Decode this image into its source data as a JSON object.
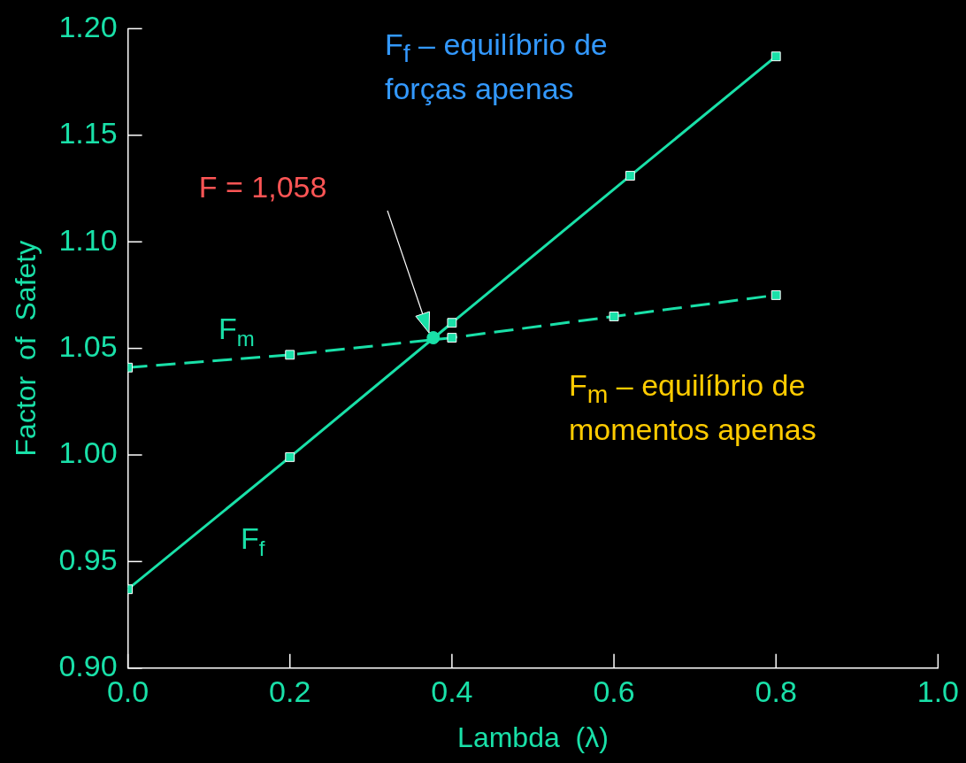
{
  "chart_data": {
    "type": "line",
    "xlabel": "Lambda  (λ)",
    "ylabel": "Factor  of  Safety",
    "series": [
      {
        "name": "F$_{f}$",
        "color": "#19e0a8",
        "x": [
          0,
          0.2,
          0.4,
          0.62,
          0.8
        ],
        "values": [
          0.937,
          0.999,
          1.062,
          1.131,
          1.187
        ],
        "line_style": "solid"
      },
      {
        "name": "F$_{m}$",
        "color": "#19e0a8",
        "x": [
          0,
          0.2,
          0.4,
          0.6,
          0.8
        ],
        "values": [
          1.041,
          1.047,
          1.055,
          1.065,
          1.075
        ],
        "line_style": "dashed"
      },
      {
        "type": "scatter",
        "color": "#19e0a8",
        "x": [
          0.377
        ],
        "values": [
          1.055
        ],
        "marker": "circle"
      }
    ],
    "marker": "square",
    "xlim": [
      0,
      1.0
    ],
    "ylim": [
      0.9,
      1.2
    ],
    "xticks": [
      {
        "value": 0,
        "label": "0.0"
      },
      {
        "value": 0.2,
        "label": "0.2"
      },
      {
        "value": 0.4,
        "label": "0.4"
      },
      {
        "value": 0.6,
        "label": "0.6"
      },
      {
        "value": 0.8,
        "label": "0.8"
      },
      {
        "value": 1.0,
        "label": "1.0"
      }
    ],
    "yticks": [
      {
        "value": 0.9,
        "label": "0.90"
      },
      {
        "value": 0.95,
        "label": "0.95"
      },
      {
        "value": 1.0,
        "label": "1.00"
      },
      {
        "value": 1.05,
        "label": "1.05"
      },
      {
        "value": 1.1,
        "label": "1.10"
      },
      {
        "value": 1.15,
        "label": "1.15"
      },
      {
        "value": 1.2,
        "label": "1.20"
      }
    ],
    "grid": false,
    "legend": false,
    "annotations": [
      "F = 1,058",
      "F$_{f}$ – equilíbrio de forças apenas",
      "F$_{m}$ – equilíbrio de momentos apenas"
    ]
  }
}
